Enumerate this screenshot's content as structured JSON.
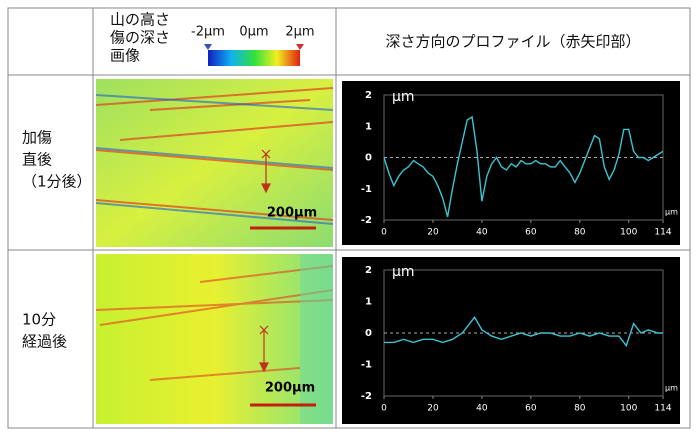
{
  "header": {
    "image_label": [
      "山の高さ",
      "傷の深さ",
      "画像"
    ],
    "colorbar_labels": [
      "-2μm",
      "0μm",
      "2μm"
    ],
    "profile_title": "深さ方向のプロファイル（赤矢印部）"
  },
  "rows": [
    {
      "label": [
        "加傷",
        "直後",
        "（1分後）"
      ],
      "scale_bar": "200μm",
      "profile": {
        "type": "line",
        "y_unit": "μm",
        "x_unit": "μm",
        "color": "#3cc3d2",
        "x": [
          0,
          2,
          4,
          6,
          8,
          10,
          12,
          14,
          16,
          18,
          20,
          22,
          24,
          26,
          28,
          30,
          32,
          34,
          36,
          38,
          40,
          42,
          44,
          46,
          48,
          50,
          52,
          54,
          56,
          58,
          60,
          62,
          64,
          66,
          68,
          70,
          72,
          74,
          76,
          78,
          80,
          82,
          84,
          86,
          88,
          90,
          92,
          94,
          96,
          98,
          100,
          102,
          104,
          106,
          108,
          110,
          112,
          114
        ],
        "values": [
          0,
          -0.5,
          -0.9,
          -0.6,
          -0.4,
          -0.3,
          -0.1,
          -0.2,
          -0.3,
          -0.5,
          -0.6,
          -0.9,
          -1.3,
          -1.9,
          -1.0,
          -0.2,
          0.5,
          1.2,
          1.3,
          0.2,
          -1.4,
          -0.6,
          -0.2,
          0.0,
          -0.3,
          -0.4,
          -0.2,
          -0.3,
          -0.1,
          -0.2,
          -0.2,
          -0.1,
          -0.2,
          -0.2,
          -0.3,
          -0.3,
          -0.1,
          -0.3,
          -0.5,
          -0.8,
          -0.5,
          -0.1,
          0.3,
          0.7,
          0.6,
          -0.3,
          -0.7,
          -0.4,
          0.1,
          0.9,
          0.9,
          0.2,
          0.0,
          0.0,
          -0.1,
          0.0,
          0.1,
          0.2
        ],
        "xlim": [
          0,
          114
        ],
        "ylim": [
          -2,
          2
        ],
        "xticks": [
          0,
          20,
          40,
          60,
          80,
          100,
          114
        ],
        "yticks": [
          -2,
          -1,
          0,
          1,
          2
        ]
      }
    },
    {
      "label": [
        "10分",
        "経過後"
      ],
      "scale_bar": "200μm",
      "profile": {
        "type": "line",
        "y_unit": "μm",
        "x_unit": "μm",
        "color": "#3cc3d2",
        "x": [
          0,
          4,
          8,
          12,
          16,
          20,
          24,
          28,
          32,
          34,
          37,
          40,
          44,
          48,
          52,
          56,
          60,
          64,
          68,
          72,
          76,
          80,
          84,
          88,
          92,
          96,
          99,
          102,
          105,
          108,
          112,
          114
        ],
        "values": [
          -0.3,
          -0.3,
          -0.2,
          -0.3,
          -0.2,
          -0.2,
          -0.3,
          -0.2,
          0,
          0.2,
          0.5,
          0.1,
          -0.1,
          -0.2,
          -0.1,
          0,
          -0.1,
          0,
          0,
          -0.1,
          -0.1,
          0,
          -0.1,
          0,
          -0.1,
          -0.1,
          -0.4,
          0.3,
          0,
          0.1,
          0,
          0
        ],
        "xlim": [
          0,
          114
        ],
        "ylim": [
          -2,
          2
        ],
        "xticks": [
          0,
          20,
          40,
          60,
          80,
          100,
          114
        ],
        "yticks": [
          -2,
          -1,
          0,
          1,
          2
        ]
      }
    }
  ]
}
